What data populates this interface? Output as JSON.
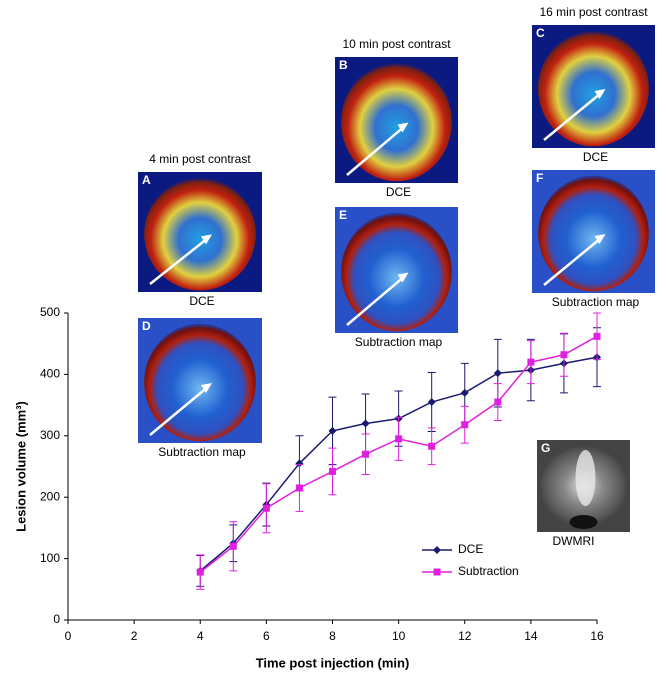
{
  "chart_data": {
    "type": "line",
    "xlabel": "Time post injection (min)",
    "ylabel": "Lesion volume (mm³)",
    "xlim": [
      0,
      16
    ],
    "xticks": [
      0,
      2,
      4,
      6,
      8,
      10,
      12,
      14,
      16
    ],
    "ylim": [
      0,
      500
    ],
    "yticks": [
      0,
      100,
      200,
      300,
      400,
      500
    ],
    "x": [
      4,
      5,
      6,
      7,
      8,
      9,
      10,
      11,
      12,
      13,
      14,
      15,
      16
    ],
    "series": [
      {
        "name": "DCE",
        "color": "#1a1a70",
        "marker": "diamond",
        "values": [
          80,
          125,
          188,
          255,
          308,
          320,
          328,
          355,
          370,
          402,
          407,
          418,
          428
        ],
        "errors": [
          25,
          30,
          35,
          45,
          55,
          48,
          45,
          48,
          48,
          55,
          50,
          48,
          48
        ]
      },
      {
        "name": "Subtraction",
        "color": "#e020e0",
        "marker": "square",
        "values": [
          78,
          120,
          182,
          215,
          242,
          270,
          295,
          283,
          318,
          355,
          420,
          432,
          462
        ],
        "errors": [
          28,
          40,
          40,
          38,
          38,
          33,
          35,
          30,
          30,
          30,
          35,
          35,
          38
        ]
      }
    ]
  },
  "insets": [
    {
      "letter": "A",
      "title": "4 min post contrast",
      "caption": "DCE"
    },
    {
      "letter": "D",
      "caption": "Subtraction map"
    },
    {
      "letter": "B",
      "title": "10 min post contrast",
      "caption": "DCE"
    },
    {
      "letter": "E",
      "caption": "Subtraction map"
    },
    {
      "letter": "C",
      "title": "16 min post contrast",
      "caption": "DCE"
    },
    {
      "letter": "F",
      "caption": "Subtraction map"
    },
    {
      "letter": "G",
      "caption": "DWMRI"
    }
  ]
}
